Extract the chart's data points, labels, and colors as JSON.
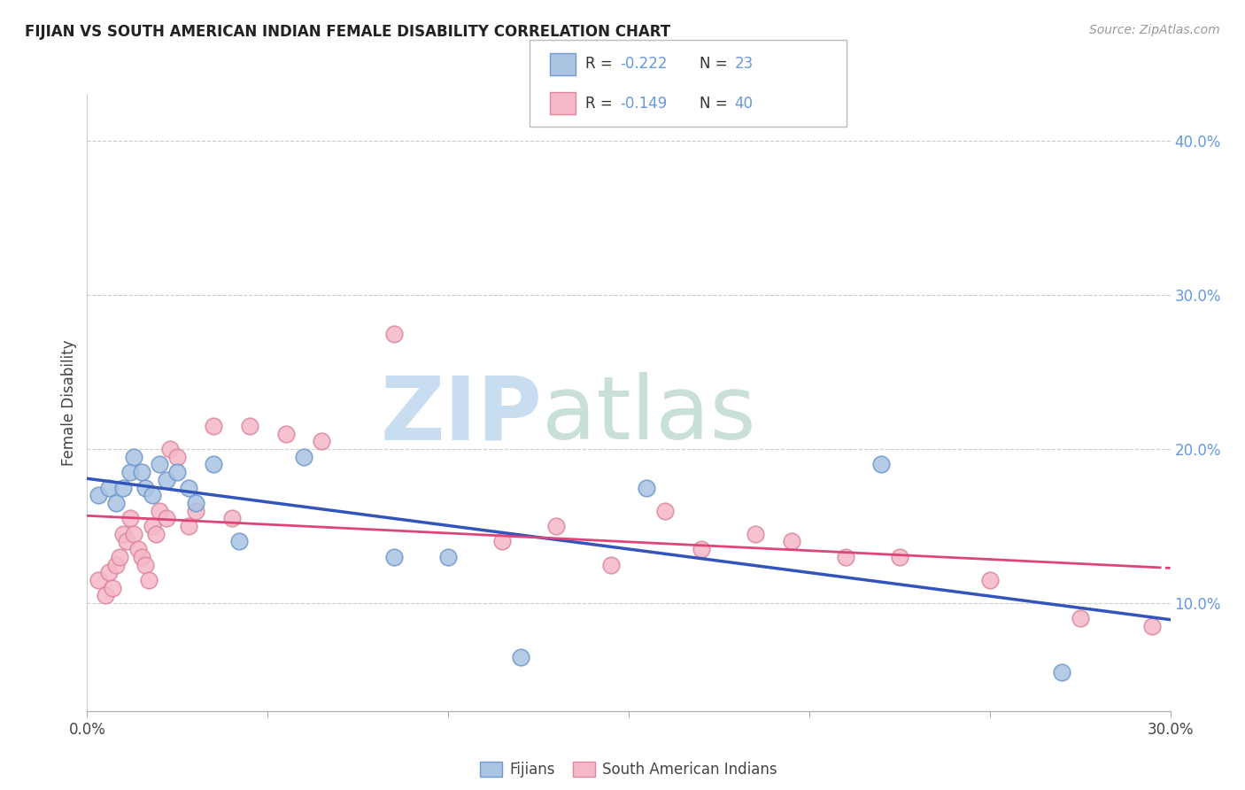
{
  "title": "FIJIAN VS SOUTH AMERICAN INDIAN FEMALE DISABILITY CORRELATION CHART",
  "source": "Source: ZipAtlas.com",
  "ylabel": "Female Disability",
  "xlim": [
    0.0,
    0.3
  ],
  "ylim": [
    0.03,
    0.43
  ],
  "x_tick_positions": [
    0.0,
    0.05,
    0.1,
    0.15,
    0.2,
    0.25,
    0.3
  ],
  "x_tick_labels": [
    "0.0%",
    "",
    "",
    "",
    "",
    "",
    "30.0%"
  ],
  "y_tick_positions": [
    0.1,
    0.2,
    0.3,
    0.4
  ],
  "y_tick_labels": [
    "10.0%",
    "20.0%",
    "30.0%",
    "40.0%"
  ],
  "legend_r1": "R = -0.222",
  "legend_n1": "N = 23",
  "legend_r2": "R = -0.149",
  "legend_n2": "N = 40",
  "fijian_color": "#aac4e2",
  "fijian_edge": "#7099cc",
  "sa_indian_color": "#f5b8c8",
  "sa_indian_edge": "#dd8899",
  "trend_fijian_color": "#3355bb",
  "trend_sa_color": "#dd4477",
  "watermark_zip_color": "#c8ddf0",
  "watermark_atlas_color": "#c8e0d8",
  "background_color": "#ffffff",
  "grid_color": "#cccccc",
  "right_axis_color": "#6699dd",
  "fijians_x": [
    0.003,
    0.006,
    0.008,
    0.01,
    0.012,
    0.013,
    0.015,
    0.016,
    0.018,
    0.02,
    0.022,
    0.025,
    0.028,
    0.03,
    0.035,
    0.042,
    0.06,
    0.085,
    0.1,
    0.12,
    0.155,
    0.22,
    0.27
  ],
  "fijians_y": [
    0.17,
    0.175,
    0.165,
    0.175,
    0.185,
    0.195,
    0.185,
    0.175,
    0.17,
    0.19,
    0.18,
    0.185,
    0.175,
    0.165,
    0.19,
    0.14,
    0.195,
    0.13,
    0.13,
    0.065,
    0.175,
    0.19,
    0.055
  ],
  "sa_indians_x": [
    0.003,
    0.005,
    0.006,
    0.007,
    0.008,
    0.009,
    0.01,
    0.011,
    0.012,
    0.013,
    0.014,
    0.015,
    0.016,
    0.017,
    0.018,
    0.019,
    0.02,
    0.022,
    0.023,
    0.025,
    0.028,
    0.03,
    0.035,
    0.04,
    0.045,
    0.055,
    0.065,
    0.085,
    0.115,
    0.13,
    0.145,
    0.16,
    0.17,
    0.185,
    0.195,
    0.21,
    0.225,
    0.25,
    0.275,
    0.295
  ],
  "sa_indians_y": [
    0.115,
    0.105,
    0.12,
    0.11,
    0.125,
    0.13,
    0.145,
    0.14,
    0.155,
    0.145,
    0.135,
    0.13,
    0.125,
    0.115,
    0.15,
    0.145,
    0.16,
    0.155,
    0.2,
    0.195,
    0.15,
    0.16,
    0.215,
    0.155,
    0.215,
    0.21,
    0.205,
    0.275,
    0.14,
    0.15,
    0.125,
    0.16,
    0.135,
    0.145,
    0.14,
    0.13,
    0.13,
    0.115,
    0.09,
    0.085
  ]
}
